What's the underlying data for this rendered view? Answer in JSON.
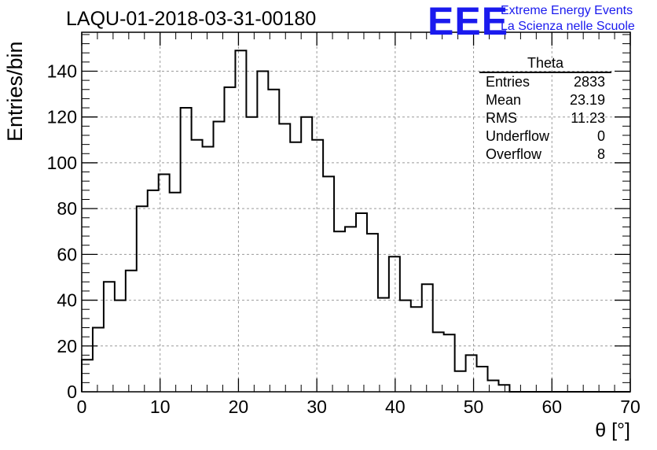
{
  "title": "LAQU-01-2018-03-31-00180",
  "logo": {
    "mark": "EEE",
    "line1": "Extreme Energy Events",
    "line2": "La Scienza nelle Scuole",
    "color": "#1a1aee"
  },
  "stats": {
    "title": "Theta",
    "rows": [
      {
        "label": "Entries",
        "value": "2833"
      },
      {
        "label": "Mean",
        "value": "23.19"
      },
      {
        "label": "RMS",
        "value": "11.23"
      },
      {
        "label": "Underflow",
        "value": "0"
      },
      {
        "label": "Overflow",
        "value": "8"
      }
    ]
  },
  "chart_data": {
    "type": "bar",
    "histogram": true,
    "title": "LAQU-01-2018-03-31-00180",
    "xlabel": "θ [°]",
    "ylabel": "Entries/bin",
    "xlim": [
      0,
      70
    ],
    "ylim": [
      0,
      157
    ],
    "bin_width": 1.4,
    "values": [
      14,
      28,
      48,
      40,
      53,
      81,
      88,
      95,
      87,
      124,
      110,
      107,
      118,
      133,
      149,
      120,
      140,
      132,
      117,
      109,
      120,
      110,
      94,
      70,
      72,
      78,
      69,
      41,
      59,
      40,
      37,
      47,
      26,
      25,
      9,
      16,
      11,
      5,
      3,
      0,
      0,
      0,
      0,
      0,
      0,
      0,
      0,
      0,
      0,
      0
    ],
    "xticks": [
      0,
      10,
      20,
      30,
      40,
      50,
      60,
      70
    ],
    "yticks": [
      0,
      20,
      40,
      60,
      80,
      100,
      120,
      140
    ],
    "grid": true
  }
}
